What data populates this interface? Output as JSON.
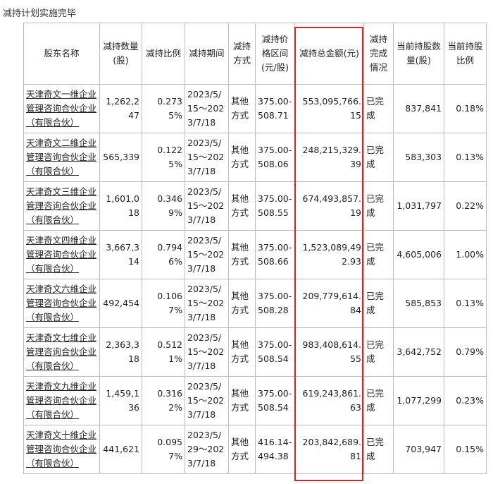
{
  "title": "减持计划实施完毕",
  "table": {
    "header": [
      "股东名称",
      "减持数量(股)",
      "减持比例",
      "减持期间",
      "减持方式",
      "减持价格区间(元/股)",
      "减持总金额(元)",
      "减持完成情况",
      "当前持股数量(股)",
      "当前持股比例"
    ],
    "rows": [
      [
        "天津奇文一维企业管理咨询合伙企业（有限合伙）",
        "1,262,247",
        "0.2735%",
        "2023/5/15～2023/7/18",
        "其他方式",
        "375.00-508.71",
        "553,095,766.15",
        "已完成",
        "837,841",
        "0.18%"
      ],
      [
        "天津奇文二维企业管理咨询合伙企业（有限合伙）",
        "565,339",
        "0.1225%",
        "2023/5/15～2023/7/18",
        "其他方式",
        "375.00-508.06",
        "248,215,329.39",
        "已完成",
        "583,303",
        "0.13%"
      ],
      [
        "天津奇文三维企业管理咨询合伙企业（有限合伙）",
        "1,601,018",
        "0.3469%",
        "2023/5/15～2023/7/18",
        "其他方式",
        "375.00-508.55",
        "674,493,857.19",
        "已完成",
        "1,031,797",
        "0.22%"
      ],
      [
        "天津奇文四维企业管理咨询合伙企业（有限合伙）",
        "3,667,314",
        "0.7946%",
        "2023/5/15～2023/7/18",
        "其他方式",
        "375.00-508.66",
        "1,523,089,492.93",
        "已完成",
        "4,605,006",
        "1.00%"
      ],
      [
        "天津奇文六维企业管理咨询合伙企业（有限合伙）",
        "492,454",
        "0.1067%",
        "2023/5/15～2023/7/18",
        "其他方式",
        "375.00-508.28",
        "209,779,614.84",
        "已完成",
        "585,853",
        "0.13%"
      ],
      [
        "天津奇文七维企业管理咨询合伙企业（有限合伙）",
        "2,363,318",
        "0.5121%",
        "2023/5/15～2023/7/18",
        "其他方式",
        "375.00-508.54",
        "983,408,614.55",
        "已完成",
        "3,642,752",
        "0.79%"
      ],
      [
        "天津奇文九维企业管理咨询合伙企业（有限合伙）",
        "1,459,136",
        "0.3162%",
        "2023/5/15～2023/7/18",
        "其他方式",
        "375.00-508.54",
        "619,243,861.63",
        "已完成",
        "1,077,299",
        "0.23%"
      ],
      [
        "天津奇文十维企业管理咨询合伙企业（有限合伙）",
        "441,621",
        "0.0957%",
        "2023/5/29～2023/7/18",
        "其他方式",
        "416.14-494.38",
        "203,842,689.81",
        "已完成",
        "703,947",
        "0.15%"
      ]
    ]
  }
}
